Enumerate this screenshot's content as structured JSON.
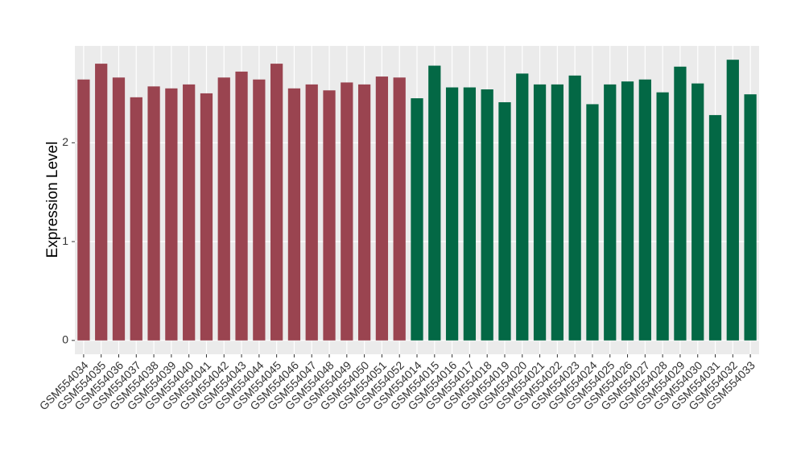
{
  "chart_data": {
    "type": "bar",
    "y_label": "Expression Level",
    "categories": [
      "GSM554034",
      "GSM554035",
      "GSM554036",
      "GSM554037",
      "GSM554038",
      "GSM554039",
      "GSM554040",
      "GSM554041",
      "GSM554042",
      "GSM554043",
      "GSM554044",
      "GSM554045",
      "GSM554046",
      "GSM554047",
      "GSM554048",
      "GSM554049",
      "GSM554050",
      "GSM554051",
      "GSM554052",
      "GSM554014",
      "GSM554015",
      "GSM554016",
      "GSM554017",
      "GSM554018",
      "GSM554019",
      "GSM554020",
      "GSM554021",
      "GSM554022",
      "GSM554023",
      "GSM554024",
      "GSM554025",
      "GSM554026",
      "GSM554027",
      "GSM554028",
      "GSM554029",
      "GSM554030",
      "GSM554031",
      "GSM554032",
      "GSM554033"
    ],
    "values": [
      2.64,
      2.8,
      2.66,
      2.46,
      2.57,
      2.55,
      2.59,
      2.5,
      2.66,
      2.72,
      2.64,
      2.8,
      2.55,
      2.59,
      2.53,
      2.61,
      2.59,
      2.67,
      2.66,
      2.45,
      2.78,
      2.56,
      2.56,
      2.54,
      2.41,
      2.7,
      2.59,
      2.59,
      2.68,
      2.39,
      2.59,
      2.62,
      2.64,
      2.51,
      2.77,
      2.6,
      2.28,
      2.84,
      2.49
    ],
    "colors": [
      "#9a4450",
      "#9a4450",
      "#9a4450",
      "#9a4450",
      "#9a4450",
      "#9a4450",
      "#9a4450",
      "#9a4450",
      "#9a4450",
      "#9a4450",
      "#9a4450",
      "#9a4450",
      "#9a4450",
      "#9a4450",
      "#9a4450",
      "#9a4450",
      "#9a4450",
      "#9a4450",
      "#9a4450",
      "#036845",
      "#036845",
      "#036845",
      "#036845",
      "#036845",
      "#036845",
      "#036845",
      "#036845",
      "#036845",
      "#036845",
      "#036845",
      "#036845",
      "#036845",
      "#036845",
      "#036845",
      "#036845",
      "#036845",
      "#036845",
      "#036845",
      "#036845"
    ],
    "ylim": [
      -0.14,
      2.98
    ],
    "yticks": [
      0,
      1,
      2
    ],
    "grid": true
  }
}
